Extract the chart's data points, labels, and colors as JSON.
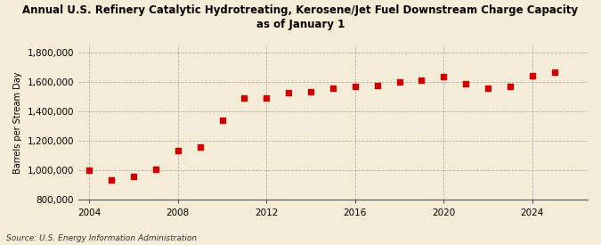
{
  "title": "Annual U.S. Refinery Catalytic Hydrotreating, Kerosene/Jet Fuel Downstream Charge Capacity\nas of January 1",
  "ylabel": "Barrels per Stream Day",
  "source": "Source: U.S. Energy Information Administration",
  "background_color": "#f5ecd7",
  "plot_background_color": "#f5ecd7",
  "marker_color": "#cc0000",
  "years": [
    2004,
    2005,
    2006,
    2007,
    2008,
    2009,
    2010,
    2011,
    2012,
    2013,
    2014,
    2015,
    2016,
    2017,
    2018,
    2019,
    2020,
    2021,
    2022,
    2023,
    2024,
    2025
  ],
  "values": [
    1005000,
    935000,
    960000,
    1010000,
    1135000,
    1160000,
    1340000,
    1490000,
    1490000,
    1530000,
    1535000,
    1560000,
    1570000,
    1575000,
    1600000,
    1610000,
    1635000,
    1590000,
    1560000,
    1570000,
    1645000,
    1670000
  ],
  "ylim": [
    800000,
    1850000
  ],
  "yticks": [
    800000,
    1000000,
    1200000,
    1400000,
    1600000,
    1800000
  ],
  "xlim": [
    2003.5,
    2026.5
  ],
  "xticks": [
    2004,
    2008,
    2012,
    2016,
    2020,
    2024
  ]
}
